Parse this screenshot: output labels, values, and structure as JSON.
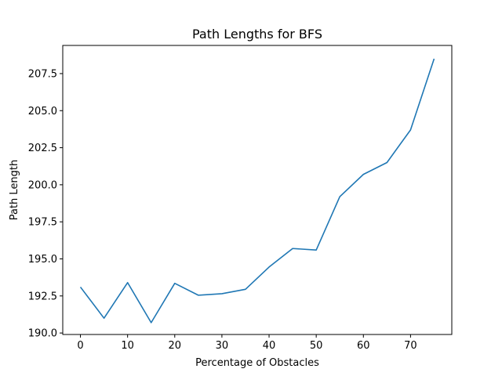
{
  "chart_data": {
    "type": "line",
    "title": "Path Lengths for BFS",
    "xlabel": "Percentage of Obstacles",
    "ylabel": "Path Length",
    "xlim": [
      -3.75,
      78.75
    ],
    "ylim": [
      189.9,
      209.4
    ],
    "xticks": [
      0,
      10,
      20,
      30,
      40,
      50,
      60,
      70
    ],
    "yticks": [
      190.0,
      192.5,
      195.0,
      197.5,
      200.0,
      202.5,
      205.0,
      207.5
    ],
    "ytick_labels": [
      "190.0",
      "192.5",
      "195.0",
      "197.5",
      "200.0",
      "202.5",
      "205.0",
      "207.5"
    ],
    "grid": false,
    "series": [
      {
        "color": "#1f77b4",
        "x": [
          0,
          5,
          10,
          15,
          20,
          25,
          30,
          35,
          40,
          45,
          50,
          55,
          60,
          65,
          70,
          75
        ],
        "y": [
          193.1,
          191.0,
          193.4,
          190.7,
          193.35,
          192.55,
          192.65,
          192.95,
          194.45,
          195.7,
          195.6,
          199.2,
          200.7,
          201.5,
          203.7,
          208.5
        ]
      }
    ]
  }
}
